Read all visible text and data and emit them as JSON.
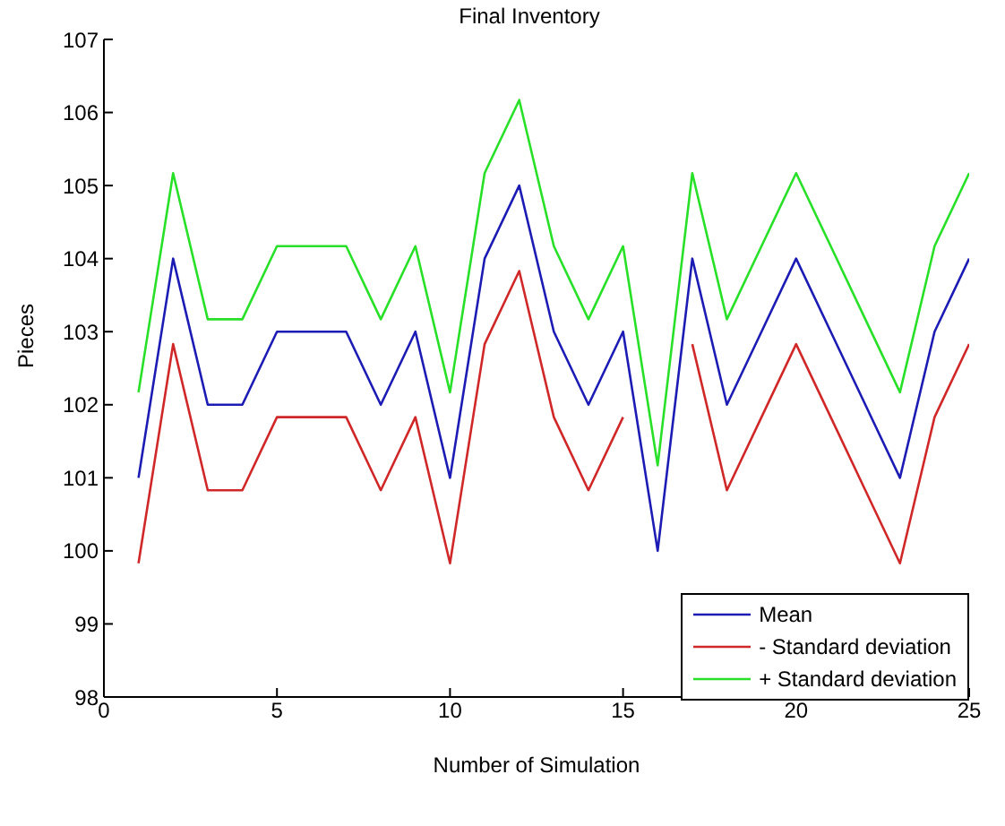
{
  "chart_data": {
    "type": "line",
    "title": "Final Inventory",
    "xlabel": "Number of Simulation",
    "ylabel": "Pieces",
    "x": [
      1,
      2,
      3,
      4,
      5,
      6,
      7,
      8,
      9,
      10,
      11,
      12,
      13,
      14,
      15,
      16,
      17,
      18,
      19,
      20,
      21,
      22,
      23,
      24,
      25
    ],
    "series": [
      {
        "name": "Mean",
        "color": "#1c1cb4",
        "values": [
          101,
          104,
          102,
          102,
          103,
          103,
          103,
          102,
          103,
          101,
          104,
          105,
          103,
          102,
          103,
          100,
          104,
          102,
          103,
          104,
          103,
          102,
          101,
          103,
          104
        ]
      },
      {
        "name": "- Standard deviation",
        "color": "#d02828",
        "values": [
          99.83,
          102.83,
          100.83,
          100.83,
          101.83,
          101.83,
          101.83,
          100.83,
          101.83,
          99.83,
          102.83,
          103.83,
          101.83,
          100.83,
          101.83,
          null,
          102.83,
          100.83,
          101.83,
          102.83,
          101.83,
          100.83,
          99.83,
          101.83,
          102.83
        ]
      },
      {
        "name": "+ Standard deviation",
        "color": "#28e028",
        "values": [
          102.17,
          105.17,
          103.17,
          103.17,
          104.17,
          104.17,
          104.17,
          103.17,
          104.17,
          102.17,
          105.17,
          106.17,
          104.17,
          103.17,
          104.17,
          101.17,
          105.17,
          103.17,
          104.17,
          105.17,
          104.17,
          103.17,
          102.17,
          104.17,
          105.17
        ]
      }
    ],
    "xlim": [
      0,
      25
    ],
    "xticks": [
      0,
      5,
      10,
      15,
      20,
      25
    ],
    "ylim": [
      98,
      107
    ],
    "yticks": [
      98,
      99,
      100,
      101,
      102,
      103,
      104,
      105,
      106,
      107
    ],
    "grid": false,
    "legend": "bottom right",
    "marker": "none",
    "line_style": "solid"
  }
}
